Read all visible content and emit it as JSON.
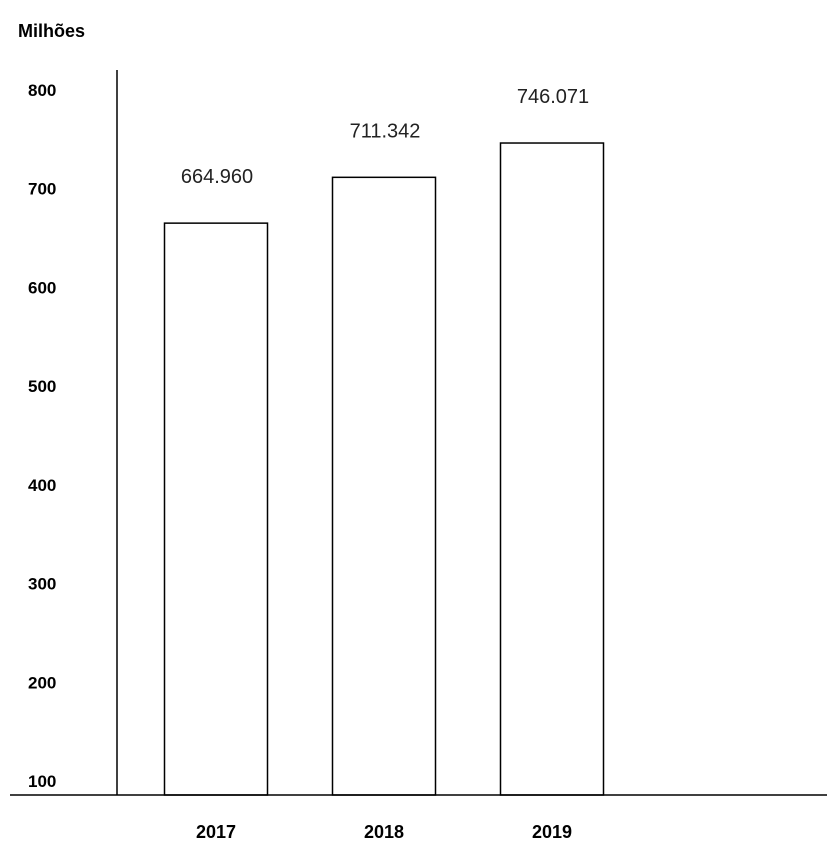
{
  "chart_data": {
    "type": "bar",
    "unit_label": "Milhões",
    "categories": [
      "2017",
      "2018",
      "2019"
    ],
    "values": [
      664.96,
      711.342,
      746.071
    ],
    "data_labels": [
      "664.960",
      "711.342",
      "746.071"
    ],
    "y_ticks": [
      100,
      200,
      300,
      400,
      500,
      600,
      700,
      800
    ],
    "ylim": [
      86,
      820
    ],
    "grid": false,
    "legend": "none",
    "bar_fill": "#ffffff",
    "bar_stroke": "#000000"
  }
}
